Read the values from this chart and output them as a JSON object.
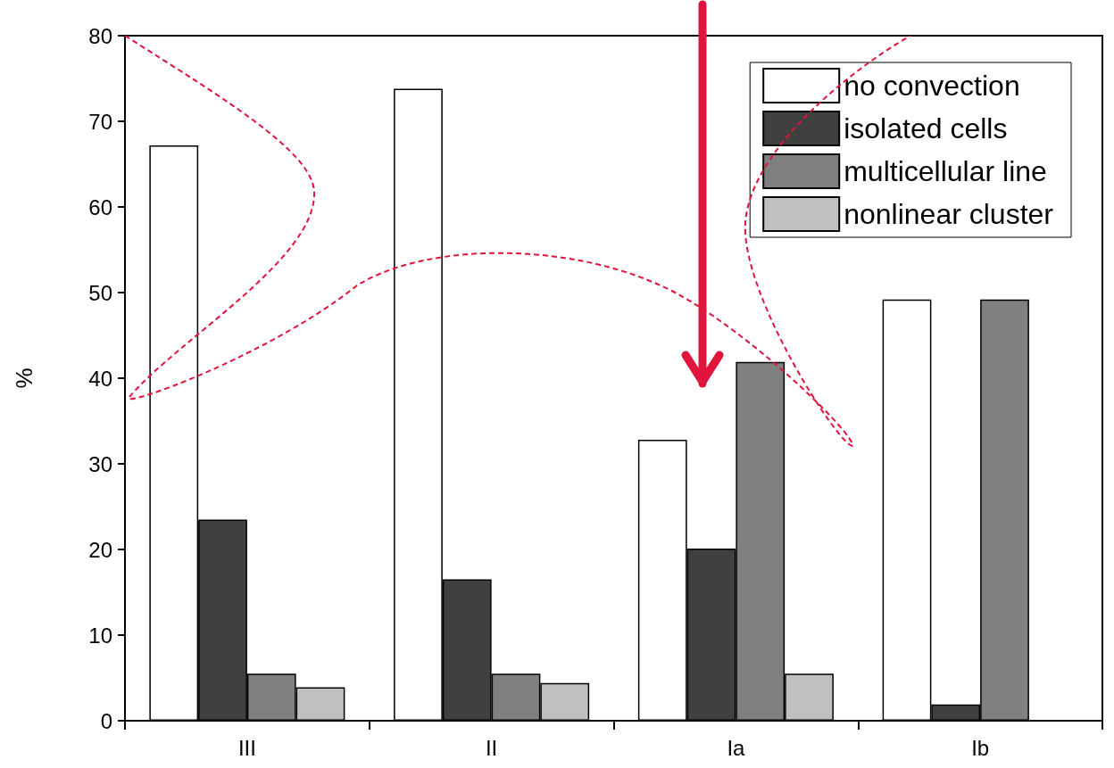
{
  "chart_data": {
    "type": "bar",
    "ylabel": "%",
    "categories": [
      "III",
      "II",
      "Ia",
      "Ib"
    ],
    "series": [
      {
        "name": "no convection",
        "color": "#ffffff",
        "values": [
          67.2,
          73.8,
          32.8,
          49.2
        ]
      },
      {
        "name": "isolated cells",
        "color": "#404040",
        "values": [
          23.5,
          16.5,
          20.1,
          1.9
        ]
      },
      {
        "name": "multicellular line",
        "color": "#808080",
        "values": [
          5.5,
          5.5,
          41.9,
          49.2
        ]
      },
      {
        "name": "nonlinear cluster",
        "color": "#c0c0c0",
        "values": [
          3.9,
          4.4,
          5.5,
          null
        ]
      }
    ],
    "ylim": [
      0,
      80
    ],
    "yticks": [
      0,
      10,
      20,
      30,
      40,
      50,
      60,
      70,
      80
    ],
    "grid": false,
    "legend": "top right"
  }
}
